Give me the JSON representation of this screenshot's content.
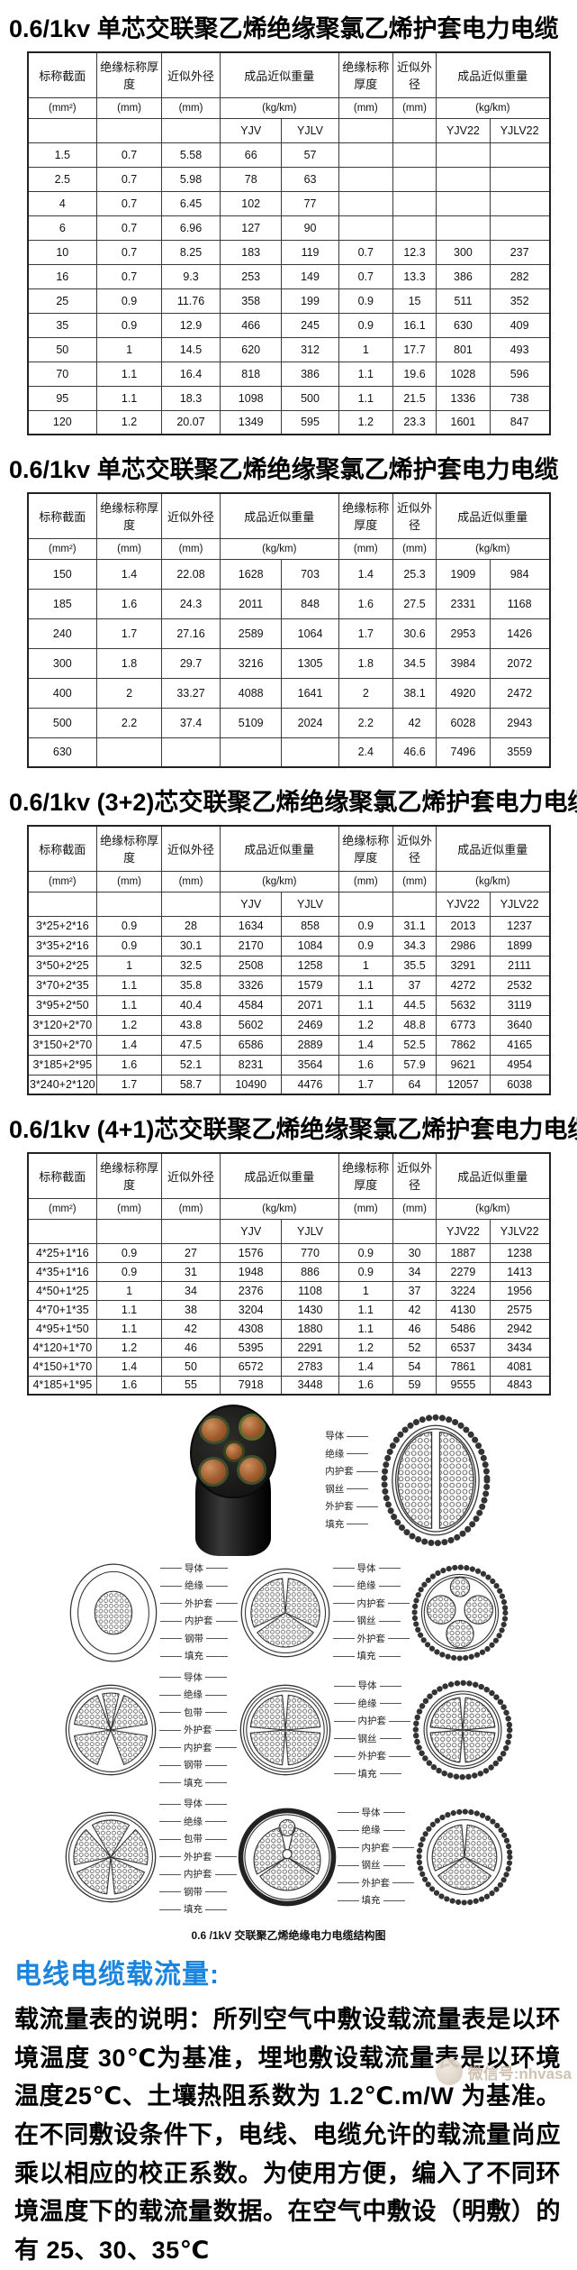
{
  "tables": [
    {
      "title": "0.6/1kv 单芯交联聚乙烯绝缘聚氯乙烯护套电力电缆",
      "headers": [
        "标称截面",
        "绝缘标称厚度",
        "近似外径",
        "成品近似重量",
        "绝缘标称厚度",
        "近似外径",
        "成品近似重量"
      ],
      "units": [
        "(mm²)",
        "(mm)",
        "(mm)",
        "(kg/km)",
        "(mm)",
        "(mm)",
        "(kg/km)"
      ],
      "models": [
        "YJV",
        "YJLV",
        "YJV22",
        "YJLV22"
      ],
      "rows": [
        [
          "1.5",
          "0.7",
          "5.58",
          "66",
          "57",
          "",
          "",
          "",
          ""
        ],
        [
          "2.5",
          "0.7",
          "5.98",
          "78",
          "63",
          "",
          "",
          "",
          ""
        ],
        [
          "4",
          "0.7",
          "6.45",
          "102",
          "77",
          "",
          "",
          "",
          ""
        ],
        [
          "6",
          "0.7",
          "6.96",
          "127",
          "90",
          "",
          "",
          "",
          ""
        ],
        [
          "10",
          "0.7",
          "8.25",
          "183",
          "119",
          "0.7",
          "12.3",
          "300",
          "237"
        ],
        [
          "16",
          "0.7",
          "9.3",
          "253",
          "149",
          "0.7",
          "13.3",
          "386",
          "282"
        ],
        [
          "25",
          "0.9",
          "11.76",
          "358",
          "199",
          "0.9",
          "15",
          "511",
          "352"
        ],
        [
          "35",
          "0.9",
          "12.9",
          "466",
          "245",
          "0.9",
          "16.1",
          "630",
          "409"
        ],
        [
          "50",
          "1",
          "14.5",
          "620",
          "312",
          "1",
          "17.7",
          "801",
          "493"
        ],
        [
          "70",
          "1.1",
          "16.4",
          "818",
          "386",
          "1.1",
          "19.6",
          "1028",
          "596"
        ],
        [
          "95",
          "1.1",
          "18.3",
          "1098",
          "500",
          "1.1",
          "21.5",
          "1336",
          "738"
        ],
        [
          "120",
          "1.2",
          "20.07",
          "1349",
          "595",
          "1.2",
          "23.3",
          "1601",
          "847"
        ]
      ]
    },
    {
      "title": "0.6/1kv 单芯交联聚乙烯绝缘聚氯乙烯护套电力电缆",
      "headers": [
        "标称截面",
        "绝缘标称厚度",
        "近似外径",
        "成品近似重量",
        "绝缘标称厚度",
        "近似外径",
        "成品近似重量"
      ],
      "units": [
        "(mm²)",
        "(mm)",
        "(mm)",
        "(kg/km)",
        "(mm)",
        "(mm)",
        "(kg/km)"
      ],
      "models": null,
      "rows": [
        [
          "150",
          "1.4",
          "22.08",
          "1628",
          "703",
          "1.4",
          "25.3",
          "1909",
          "984"
        ],
        [
          "185",
          "1.6",
          "24.3",
          "2011",
          "848",
          "1.6",
          "27.5",
          "2331",
          "1168"
        ],
        [
          "240",
          "1.7",
          "27.16",
          "2589",
          "1064",
          "1.7",
          "30.6",
          "2953",
          "1426"
        ],
        [
          "300",
          "1.8",
          "29.7",
          "3216",
          "1305",
          "1.8",
          "34.5",
          "3984",
          "2072"
        ],
        [
          "400",
          "2",
          "33.27",
          "4088",
          "1641",
          "2",
          "38.1",
          "4920",
          "2472"
        ],
        [
          "500",
          "2.2",
          "37.4",
          "5109",
          "2024",
          "2.2",
          "42",
          "6028",
          "2943"
        ],
        [
          "630",
          "",
          "",
          "",
          "",
          "2.4",
          "46.6",
          "7496",
          "3559"
        ]
      ]
    },
    {
      "title": "0.6/1kv (3+2)芯交联聚乙烯绝缘聚氯乙烯护套电力电缆",
      "headers": [
        "标称截面",
        "绝缘标称厚度",
        "近似外径",
        "成品近似重量",
        "绝缘标称厚度",
        "近似外径",
        "成品近似重量"
      ],
      "units": [
        "(mm²)",
        "(mm)",
        "(mm)",
        "(kg/km)",
        "(mm)",
        "(mm)",
        "(kg/km)"
      ],
      "models": [
        "YJV",
        "YJLV",
        "YJV22",
        "YJLV22"
      ],
      "rows": [
        [
          "3*25+2*16",
          "0.9",
          "28",
          "1634",
          "858",
          "0.9",
          "31.1",
          "2013",
          "1237"
        ],
        [
          "3*35+2*16",
          "0.9",
          "30.1",
          "2170",
          "1084",
          "0.9",
          "34.3",
          "2986",
          "1899"
        ],
        [
          "3*50+2*25",
          "1",
          "32.5",
          "2508",
          "1258",
          "1",
          "35.5",
          "3291",
          "2111"
        ],
        [
          "3*70+2*35",
          "1.1",
          "35.8",
          "3326",
          "1579",
          "1.1",
          "37",
          "4272",
          "2532"
        ],
        [
          "3*95+2*50",
          "1.1",
          "40.4",
          "4584",
          "2071",
          "1.1",
          "44.5",
          "5632",
          "3119"
        ],
        [
          "3*120+2*70",
          "1.2",
          "43.8",
          "5602",
          "2469",
          "1.2",
          "48.8",
          "6773",
          "3640"
        ],
        [
          "3*150+2*70",
          "1.4",
          "47.5",
          "6586",
          "2889",
          "1.4",
          "52.5",
          "7862",
          "4165"
        ],
        [
          "3*185+2*95",
          "1.6",
          "52.1",
          "8231",
          "3564",
          "1.6",
          "57.9",
          "9621",
          "4954"
        ],
        [
          "3*240+2*120",
          "1.7",
          "58.7",
          "10490",
          "4476",
          "1.7",
          "64",
          "12057",
          "6038"
        ]
      ]
    },
    {
      "title": "0.6/1kv (4+1)芯交联聚乙烯绝缘聚氯乙烯护套电力电缆",
      "headers": [
        "标称截面",
        "绝缘标称厚度",
        "近似外径",
        "成品近似重量",
        "绝缘标称厚度",
        "近似外径",
        "成品近似重量"
      ],
      "units": [
        "(mm²)",
        "(mm)",
        "(mm)",
        "(kg/km)",
        "(mm)",
        "(mm)",
        "(kg/km)"
      ],
      "models": [
        "YJV",
        "YJLV",
        "YJV22",
        "YJLV22"
      ],
      "rows": [
        [
          "4*25+1*16",
          "0.9",
          "27",
          "1576",
          "770",
          "0.9",
          "30",
          "1887",
          "1238"
        ],
        [
          "4*35+1*16",
          "0.9",
          "31",
          "1948",
          "886",
          "0.9",
          "34",
          "2279",
          "1413"
        ],
        [
          "4*50+1*25",
          "1",
          "34",
          "2376",
          "1108",
          "1",
          "37",
          "3224",
          "1956"
        ],
        [
          "4*70+1*35",
          "1.1",
          "38",
          "3204",
          "1430",
          "1.1",
          "42",
          "4130",
          "2575"
        ],
        [
          "4*95+1*50",
          "1.1",
          "42",
          "4308",
          "1880",
          "1.1",
          "46",
          "5486",
          "2942"
        ],
        [
          "4*120+1*70",
          "1.2",
          "46",
          "5395",
          "2291",
          "1.2",
          "52",
          "6537",
          "3434"
        ],
        [
          "4*150+1*70",
          "1.4",
          "50",
          "6572",
          "2783",
          "1.4",
          "54",
          "7861",
          "4081"
        ],
        [
          "4*185+1*95",
          "1.6",
          "55",
          "7918",
          "3448",
          "1.6",
          "59",
          "9555",
          "4843"
        ]
      ]
    }
  ],
  "diagrams": {
    "caption": "0.6 /1kV 交联聚乙烯绝缘电力电缆结构图",
    "labels": {
      "set_a": [
        "导体",
        "绝缘",
        "内护套",
        "钢丝",
        "外护套",
        "填充"
      ],
      "set_b": [
        "导体",
        "绝缘",
        "外护套",
        "内护套",
        "钢带",
        "填充"
      ],
      "set_c": [
        "导体",
        "绝缘",
        "包带",
        "外护套",
        "内护套",
        "钢带",
        "填充"
      ]
    }
  },
  "flow_section": {
    "heading": "电线电缆载流量:",
    "body": "载流量表的说明：所列空气中敷设载流量表是以环境温度 30℃为基准，埋地敷设载流量表是以环境温度25℃、土壤热阻系数为 1.2℃.m/W 为基准。在不同敷设条件下，电线、电缆允许的载流量尚应乘以相应的校正系数。为使用方便，编入了不同环境温度下的载流量数据。在空气中敷设（明敷）的有 25、30、35℃"
  },
  "watermark": "微信号:nhvasa"
}
